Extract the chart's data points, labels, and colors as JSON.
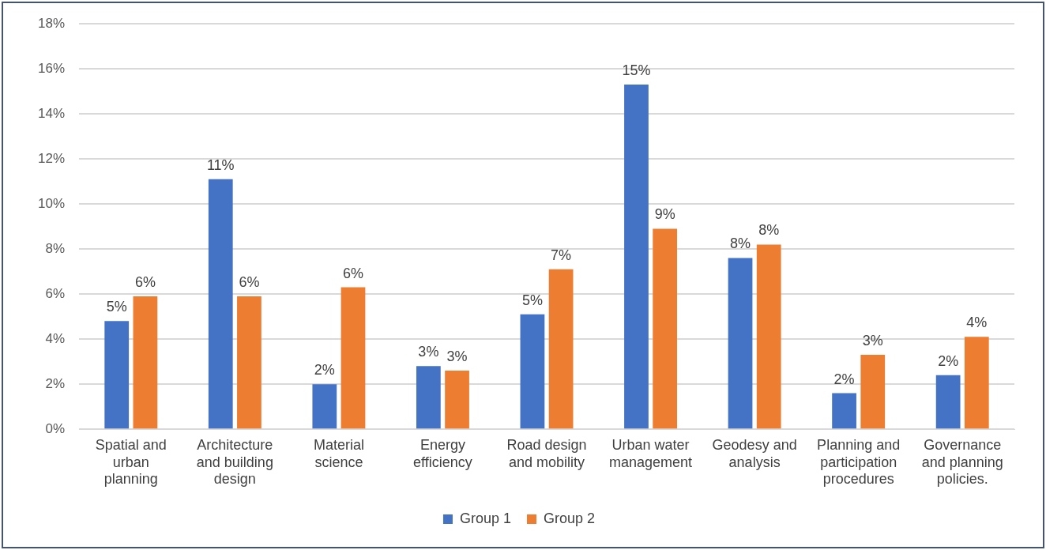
{
  "chart_data": {
    "type": "bar",
    "categories": [
      "Spatial and urban planning",
      "Architecture and building design",
      "Material science",
      "Energy efficiency",
      "Road design and mobility",
      "Urban water management",
      "Geodesy and analysis",
      "Planning and participation procedures",
      "Governance and planning policies."
    ],
    "series": [
      {
        "name": "Group 1",
        "color": "#4472c4",
        "values": [
          4.8,
          11.1,
          2.0,
          2.8,
          5.1,
          15.3,
          7.6,
          1.6,
          2.4
        ],
        "value_labels": [
          "5%",
          "11%",
          "2%",
          "3%",
          "5%",
          "15%",
          "8%",
          "2%",
          "2%"
        ]
      },
      {
        "name": "Group 2",
        "color": "#ed7d31",
        "values": [
          5.9,
          5.9,
          6.3,
          2.6,
          7.1,
          8.9,
          8.2,
          3.3,
          4.1
        ],
        "value_labels": [
          "6%",
          "6%",
          "6%",
          "3%",
          "7%",
          "9%",
          "8%",
          "3%",
          "4%"
        ]
      }
    ],
    "ylim": [
      0,
      18
    ],
    "yticks": [
      {
        "value": 0,
        "label": "0%"
      },
      {
        "value": 2,
        "label": "2%"
      },
      {
        "value": 4,
        "label": "4%"
      },
      {
        "value": 6,
        "label": "6%"
      },
      {
        "value": 8,
        "label": "8%"
      },
      {
        "value": 10,
        "label": "10%"
      },
      {
        "value": 12,
        "label": "12%"
      },
      {
        "value": 14,
        "label": "14%"
      },
      {
        "value": 16,
        "label": "16%"
      },
      {
        "value": 18,
        "label": "18%"
      }
    ],
    "grid": "y",
    "legend": "bottom"
  }
}
